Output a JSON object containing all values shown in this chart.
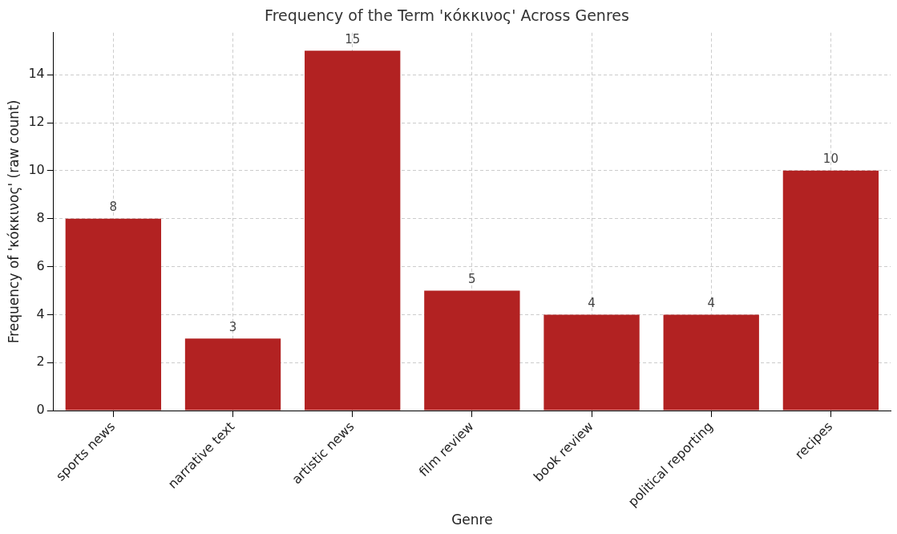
{
  "chart_data": {
    "type": "bar",
    "title": "Frequency of the Term 'κόκκινος' Across Genres",
    "xlabel": "Genre",
    "ylabel": "Frequency of 'κόκκινος' (raw count)",
    "categories": [
      "sports news",
      "narrative text",
      "artistic news",
      "film review",
      "book review",
      "political reporting",
      "recipes"
    ],
    "values": [
      8,
      3,
      15,
      5,
      4,
      4,
      10
    ],
    "color": "#b22222",
    "ylim": [
      0,
      15.75
    ],
    "yticks": [
      0,
      2,
      4,
      6,
      8,
      10,
      12,
      14
    ],
    "grid": true,
    "data_labels": true,
    "legend": false
  }
}
